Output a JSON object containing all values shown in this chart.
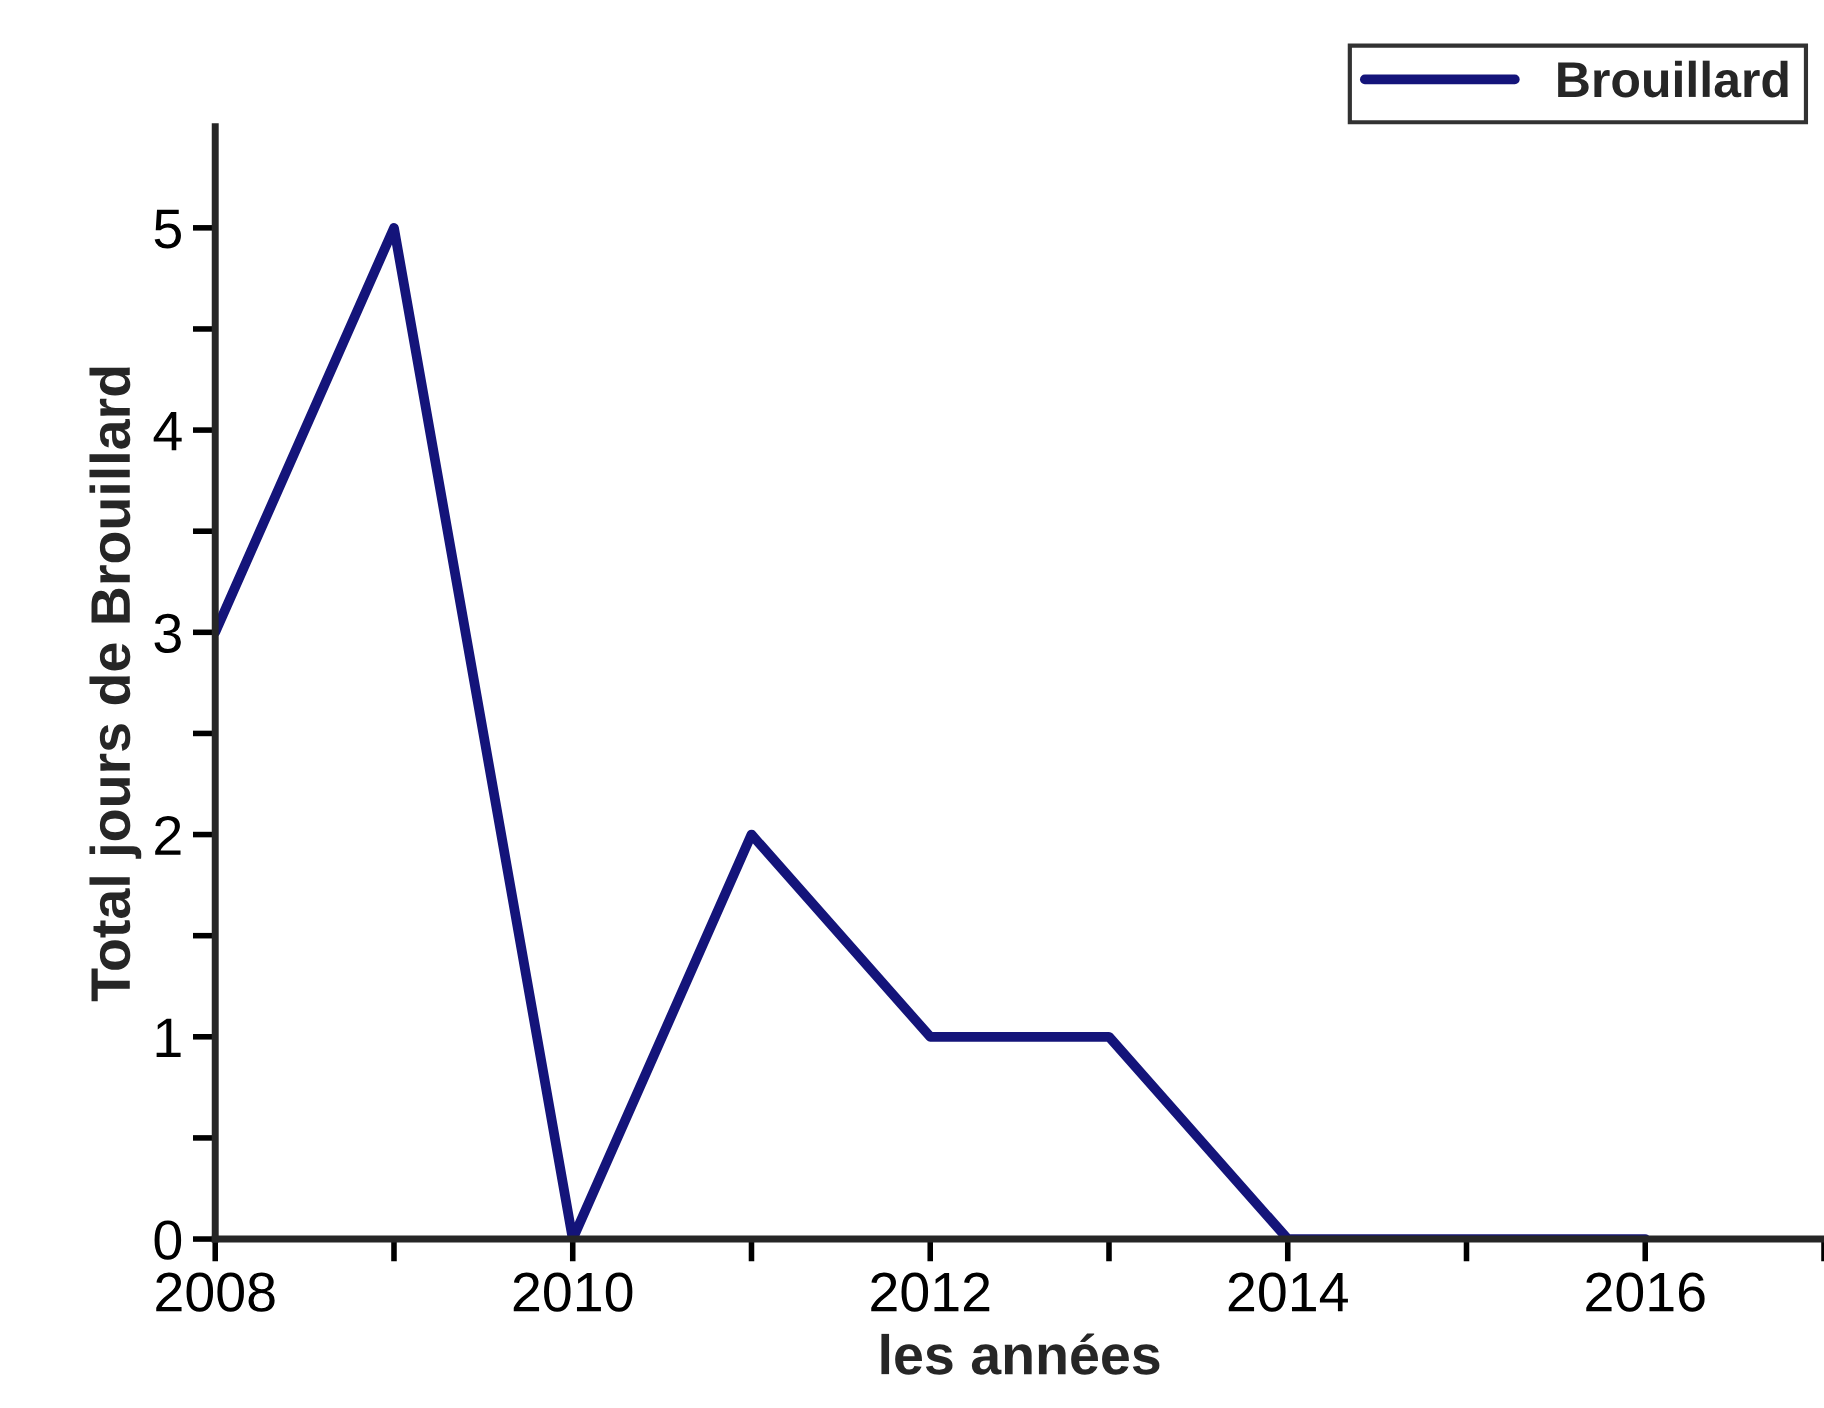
{
  "chart_data": {
    "type": "line",
    "xlabel": "les années",
    "ylabel": "Total jours de Brouillard",
    "x": [
      2008,
      2009,
      2010,
      2011,
      2012,
      2013,
      2014,
      2015,
      2016
    ],
    "series": [
      {
        "name": "Brouillard",
        "color": "#14147a",
        "values": [
          3,
          5,
          0,
          2,
          1,
          1,
          0,
          0,
          0
        ]
      }
    ],
    "xlim": [
      2008,
      2017
    ],
    "xticks": [
      2008,
      {
        "value": 2009,
        "label": null
      },
      2010,
      {
        "value": 2011,
        "label": null
      },
      2012,
      {
        "value": 2013,
        "label": null
      },
      2014,
      {
        "value": 2015,
        "label": null
      },
      2016,
      {
        "value": 2017,
        "label": null
      }
    ],
    "ylim": [
      0,
      5.5
    ],
    "yticks": [
      0,
      {
        "value": 0.5,
        "label": null
      },
      1,
      {
        "value": 1.5,
        "label": null
      },
      2,
      {
        "value": 2.5,
        "label": null
      },
      3,
      {
        "value": 3.5,
        "label": null
      },
      4,
      {
        "value": 4.5,
        "label": null
      },
      5
    ],
    "grid": false,
    "legend": "top right",
    "marker": "none",
    "line_style": "solid"
  }
}
